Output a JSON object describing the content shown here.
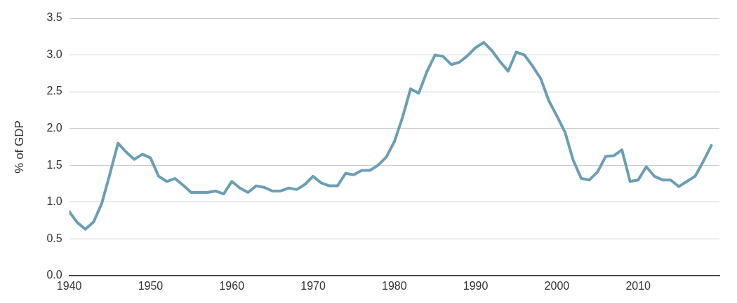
{
  "chart_data": {
    "type": "line",
    "y_label": "% of GDP",
    "x": [
      1940,
      1941,
      1942,
      1943,
      1944,
      1945,
      1946,
      1947,
      1948,
      1949,
      1950,
      1951,
      1952,
      1953,
      1954,
      1955,
      1956,
      1957,
      1958,
      1959,
      1960,
      1961,
      1962,
      1963,
      1964,
      1965,
      1966,
      1967,
      1968,
      1969,
      1970,
      1971,
      1972,
      1973,
      1974,
      1975,
      1976,
      1977,
      1978,
      1979,
      1980,
      1981,
      1982,
      1983,
      1984,
      1985,
      1986,
      1987,
      1988,
      1989,
      1990,
      1991,
      1992,
      1993,
      1994,
      1995,
      1996,
      1997,
      1998,
      1999,
      2000,
      2001,
      2002,
      2003,
      2004,
      2005,
      2006,
      2007,
      2008,
      2009,
      2010,
      2011,
      2012,
      2013,
      2014,
      2015,
      2016,
      2017,
      2018,
      2019
    ],
    "values": [
      0.87,
      0.72,
      0.63,
      0.73,
      0.98,
      1.38,
      1.8,
      1.68,
      1.58,
      1.65,
      1.6,
      1.35,
      1.28,
      1.32,
      1.23,
      1.13,
      1.13,
      1.13,
      1.15,
      1.11,
      1.28,
      1.19,
      1.13,
      1.22,
      1.2,
      1.15,
      1.15,
      1.19,
      1.17,
      1.24,
      1.35,
      1.26,
      1.22,
      1.22,
      1.39,
      1.37,
      1.43,
      1.43,
      1.5,
      1.61,
      1.82,
      2.15,
      2.54,
      2.48,
      2.77,
      3.0,
      2.98,
      2.87,
      2.9,
      2.99,
      3.1,
      3.17,
      3.06,
      2.91,
      2.78,
      3.04,
      3.0,
      2.85,
      2.68,
      2.38,
      2.17,
      1.95,
      1.57,
      1.32,
      1.3,
      1.41,
      1.62,
      1.63,
      1.71,
      1.28,
      1.3,
      1.48,
      1.35,
      1.3,
      1.3,
      1.21,
      1.28,
      1.35,
      1.55,
      1.77
    ],
    "color": "#6b9fb6",
    "xlim": [
      1940,
      2020
    ],
    "xticks": [
      1940,
      1950,
      1960,
      1970,
      1980,
      1990,
      2000,
      2010
    ],
    "ylim": [
      0,
      3.5
    ],
    "yticks": [
      {
        "value": 0,
        "label": "0.0"
      },
      {
        "value": 0.5,
        "label": "0.5"
      },
      {
        "value": 1,
        "label": "1.0"
      },
      {
        "value": 1.5,
        "label": "1.5"
      },
      {
        "value": 2,
        "label": "2.0"
      },
      {
        "value": 2.5,
        "label": "2.5"
      },
      {
        "value": 3,
        "label": "3.0"
      },
      {
        "value": 3.5,
        "label": "3.5"
      }
    ],
    "grid": true
  }
}
